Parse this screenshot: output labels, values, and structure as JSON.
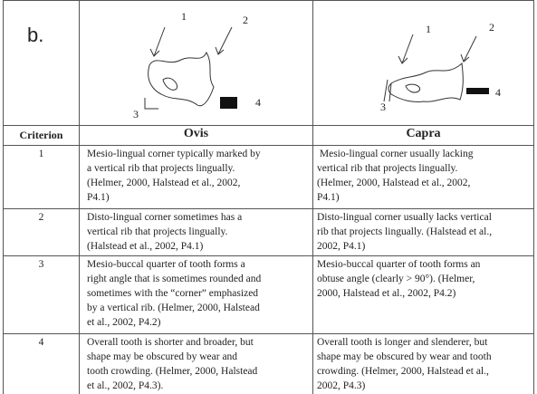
{
  "label": "b.",
  "ovis_figure": {
    "labels": [
      "1",
      "2",
      "3",
      "4"
    ]
  },
  "capra_figure": {
    "labels": [
      "1",
      "2",
      "3",
      "4"
    ]
  },
  "table": {
    "header": [
      "Criterion",
      "Ovis",
      "Capra"
    ],
    "rows": [
      [
        "1",
        [
          "Mesio-lingual corner typically marked by",
          "a vertical rib that projects lingually.",
          "(Helmer, 2000, Halstead et al., 2002,",
          "P4.1)"
        ],
        [
          " Mesio-lingual corner usually lacking",
          "vertical rib that projects lingually.",
          "(Helmer, 2000, Halstead et al., 2002,",
          "P4.1)"
        ]
      ],
      [
        "2",
        [
          "Disto-lingual corner sometimes has a",
          "vertical rib that projects lingually.",
          "(Halstead et al., 2002, P4.1)"
        ],
        [
          "Disto-lingual corner usually lacks vertical",
          "rib that projects lingually. (Halstead et al.,",
          "2002, P4.1)"
        ]
      ],
      [
        "3",
        [
          "Mesio-buccal quarter of tooth forms a",
          "right angle that is sometimes rounded and",
          "sometimes with the “corner” emphasized",
          "by a vertical rib. (Helmer, 2000, Halstead",
          "et al., 2002, P4.2)"
        ],
        [
          "Mesio-buccal quarter of tooth forms an",
          "obtuse angle (clearly > 90°). (Helmer,",
          "2000, Halstead et al., 2002, P4.2)"
        ]
      ],
      [
        "4",
        [
          "Overall tooth is shorter and broader, but",
          "shape may be obscured by wear and",
          "tooth crowding. (Helmer, 2000, Halstead",
          "et al., 2002, P4.3)."
        ],
        [
          "Overall tooth is longer and slenderer, but",
          "shape may be obscured by wear and tooth",
          "crowding. (Helmer, 2000, Halstead et al.,",
          "2002, P4.3)"
        ]
      ]
    ]
  }
}
